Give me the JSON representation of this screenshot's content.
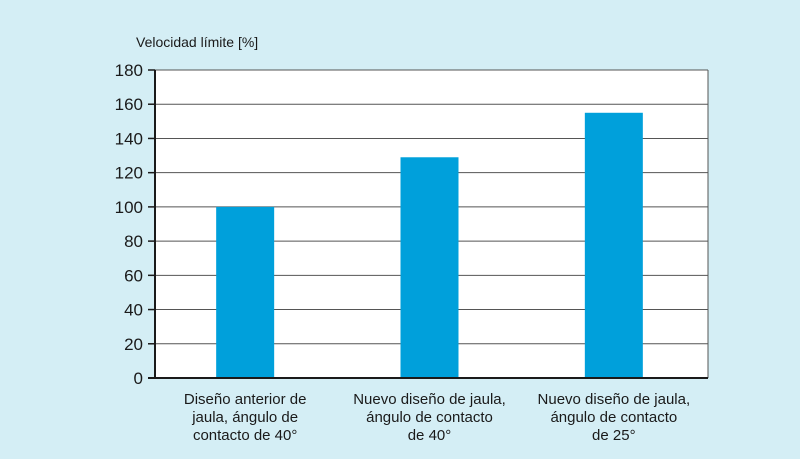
{
  "chart_data": {
    "type": "bar",
    "ylabel": "Velocidad límite [%]",
    "xlabel": "",
    "title": "",
    "ylim": [
      0,
      180
    ],
    "yticks": [
      0,
      20,
      40,
      60,
      80,
      100,
      120,
      140,
      160,
      180
    ],
    "grid": true,
    "categories": [
      [
        "Diseño anterior de",
        "jaula, ángulo de",
        "contacto de 40°"
      ],
      [
        "Nuevo diseño de jaula,",
        "ángulo de contacto",
        "de 40°"
      ],
      [
        "Nuevo diseño de jaula,",
        "ángulo de contacto",
        "de 25°"
      ]
    ],
    "values": [
      100,
      129,
      155
    ],
    "colors": {
      "background": "#d4eef5",
      "plot_background": "#ffffff",
      "bar": "#00a0db",
      "grid": "#555555",
      "axis": "#1a1a1a"
    }
  }
}
